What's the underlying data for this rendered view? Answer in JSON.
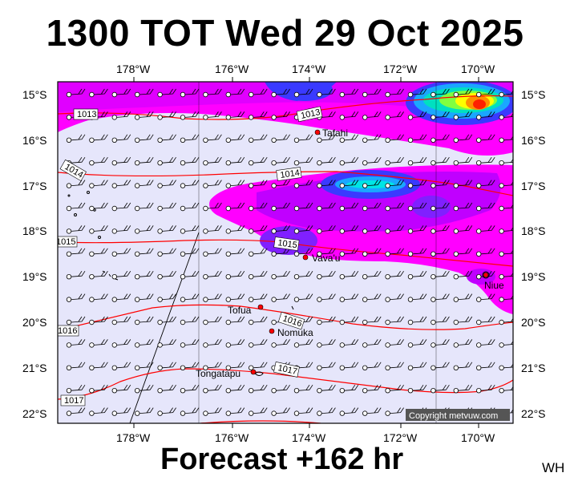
{
  "header": {
    "title": "1300 TOT Wed 29 Oct 2025"
  },
  "footer": {
    "forecast_label": "Forecast +162 hr",
    "signature": "WH"
  },
  "credit": "Copyright metvuw.com",
  "map": {
    "longitude_ticks": [
      "178°W",
      "176°W",
      "174°W",
      "172°W",
      "170°W"
    ],
    "latitude_ticks": [
      "15°S",
      "16°S",
      "17°S",
      "18°S",
      "19°S",
      "20°S",
      "21°S",
      "22°S"
    ],
    "places": [
      {
        "name": "Tafahi"
      },
      {
        "name": "Vava'u"
      },
      {
        "name": "Niue"
      },
      {
        "name": "Tofua"
      },
      {
        "name": "Nomuka"
      },
      {
        "name": "Tongatapu"
      }
    ],
    "isobar_labels": [
      "1013",
      "1013",
      "1014",
      "1014",
      "1015",
      "1015",
      "1016",
      "1016",
      "1017",
      "1017"
    ]
  },
  "colors": {
    "ocean_background": "#e6e6fb",
    "rain_light": "#ff00ff",
    "rain_moderate": "#b000ff",
    "rain_heavy": "#3a3aff",
    "isobar": "#ff0000",
    "town_marker": "#ff0000"
  }
}
